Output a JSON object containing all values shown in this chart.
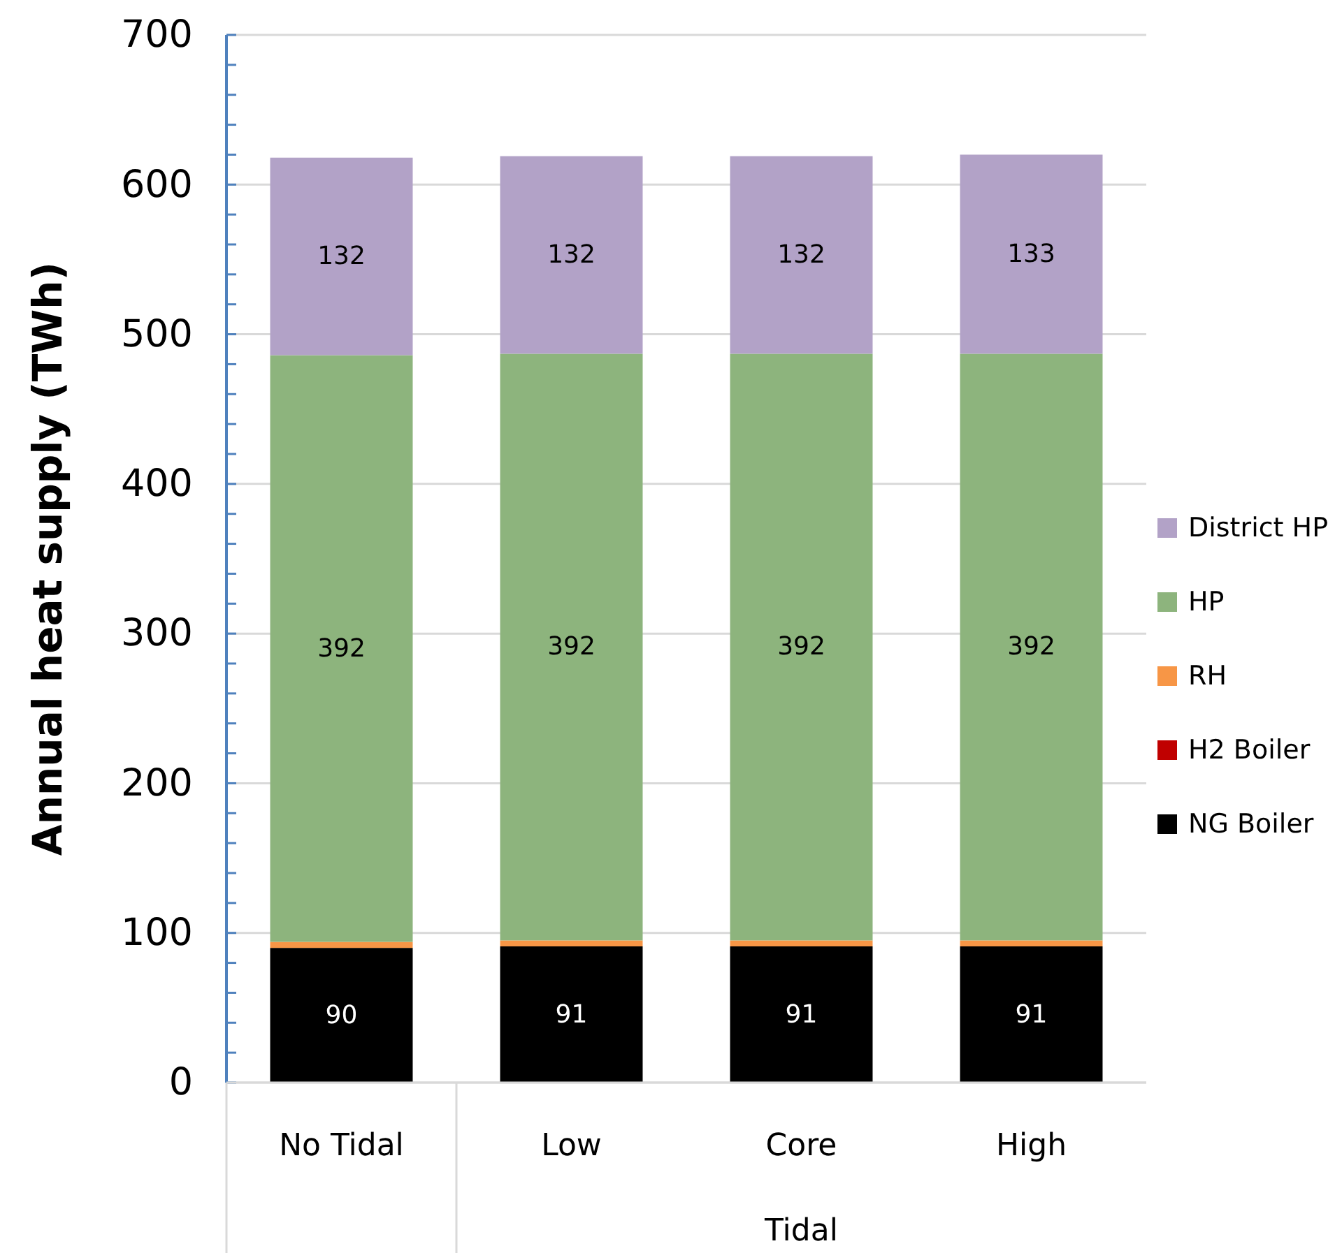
{
  "chart_data": {
    "type": "bar",
    "stacked": true,
    "ylabel": "Annual heat supply (TWh)",
    "categories": [
      "No Tidal",
      "Low",
      "Core",
      "High"
    ],
    "annotations": [
      "Tidal"
    ],
    "series": [
      {
        "name": "NG Boiler",
        "color": "#000000",
        "values": [
          90,
          91,
          91,
          91
        ],
        "value_labels": [
          "90",
          "91",
          "91",
          "91"
        ]
      },
      {
        "name": "H2 Boiler",
        "color": "#c00000",
        "values": [
          0,
          0,
          0,
          0
        ]
      },
      {
        "name": "RH",
        "color": "#f79646",
        "values": [
          4,
          4,
          4,
          4
        ]
      },
      {
        "name": "HP",
        "color": "#8db47d",
        "values": [
          392,
          392,
          392,
          392
        ],
        "value_labels": [
          "392",
          "392",
          "392",
          "392"
        ]
      },
      {
        "name": "District HP",
        "color": "#b2a2c7",
        "values": [
          132,
          132,
          132,
          133
        ],
        "value_labels": [
          "132",
          "132",
          "132",
          "133"
        ]
      }
    ],
    "ylim": [
      0,
      700
    ],
    "yticks": [
      0,
      {
        "value": 20,
        "label": null
      },
      {
        "value": 40,
        "label": null
      },
      {
        "value": 60,
        "label": null
      },
      {
        "value": 80,
        "label": null
      },
      100,
      {
        "value": 120,
        "label": null
      },
      {
        "value": 140,
        "label": null
      },
      {
        "value": 160,
        "label": null
      },
      {
        "value": 180,
        "label": null
      },
      200,
      {
        "value": 220,
        "label": null
      },
      {
        "value": 240,
        "label": null
      },
      {
        "value": 260,
        "label": null
      },
      {
        "value": 280,
        "label": null
      },
      300,
      {
        "value": 320,
        "label": null
      },
      {
        "value": 340,
        "label": null
      },
      {
        "value": 360,
        "label": null
      },
      {
        "value": 380,
        "label": null
      },
      400,
      {
        "value": 420,
        "label": null
      },
      {
        "value": 440,
        "label": null
      },
      {
        "value": 460,
        "label": null
      },
      {
        "value": 480,
        "label": null
      },
      500,
      {
        "value": 520,
        "label": null
      },
      {
        "value": 540,
        "label": null
      },
      {
        "value": 560,
        "label": null
      },
      {
        "value": 580,
        "label": null
      },
      600,
      {
        "value": 620,
        "label": null
      },
      {
        "value": 640,
        "label": null
      },
      {
        "value": 660,
        "label": null
      },
      {
        "value": 680,
        "label": null
      },
      700
    ],
    "grid": "y",
    "legend": "right"
  }
}
